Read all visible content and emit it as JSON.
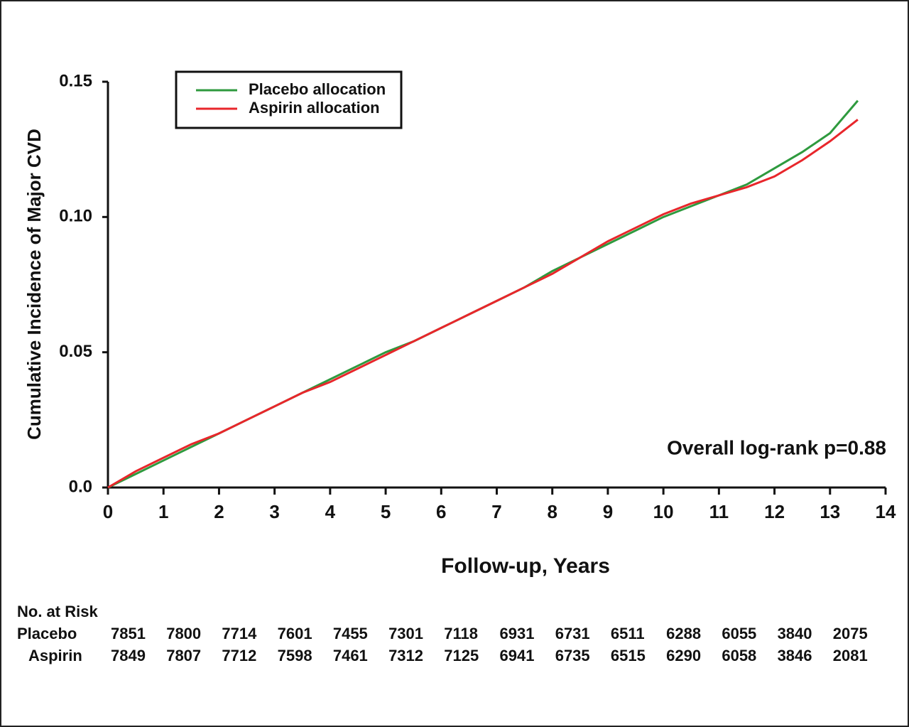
{
  "chart_data": {
    "type": "line",
    "y_label": "Cumulative Incidence of Major CVD",
    "x_label": "Follow-up, Years",
    "annotation": "Overall log-rank p=0.88",
    "x": [
      0,
      0.5,
      1,
      1.5,
      2,
      2.5,
      3,
      3.5,
      4,
      4.5,
      5,
      5.5,
      6,
      6.5,
      7,
      7.5,
      8,
      8.5,
      9,
      9.5,
      10,
      10.5,
      11,
      11.5,
      12,
      12.5,
      13,
      13.5
    ],
    "series": [
      {
        "name": "Placebo allocation",
        "color": "#2e9a3e",
        "values": [
          0,
          0.005,
          0.01,
          0.015,
          0.02,
          0.025,
          0.03,
          0.035,
          0.04,
          0.045,
          0.05,
          0.054,
          0.059,
          0.064,
          0.069,
          0.074,
          0.08,
          0.085,
          0.09,
          0.095,
          0.1,
          0.104,
          0.108,
          0.112,
          0.118,
          0.124,
          0.131,
          0.143
        ]
      },
      {
        "name": "Aspirin allocation",
        "color": "#e8262b",
        "values": [
          0,
          0.006,
          0.011,
          0.016,
          0.02,
          0.025,
          0.03,
          0.035,
          0.039,
          0.044,
          0.049,
          0.054,
          0.059,
          0.064,
          0.069,
          0.074,
          0.079,
          0.085,
          0.091,
          0.096,
          0.101,
          0.105,
          0.108,
          0.111,
          0.115,
          0.121,
          0.128,
          0.136
        ]
      }
    ],
    "xlim": [
      0,
      14
    ],
    "xticks": [
      0,
      1,
      2,
      3,
      4,
      5,
      6,
      7,
      8,
      9,
      10,
      11,
      12,
      13,
      14
    ],
    "ylim": [
      0,
      0.15
    ],
    "yticks": [
      {
        "value": 0,
        "label": "0.0"
      },
      {
        "value": 0.05,
        "label": "0.05"
      },
      {
        "value": 0.1,
        "label": "0.10"
      },
      {
        "value": 0.15,
        "label": "0.15"
      }
    ],
    "legend": "top-left",
    "risk_table": {
      "title": "No. at Risk",
      "rows": [
        {
          "label": "Placebo",
          "values": [
            7851,
            7800,
            7714,
            7601,
            7455,
            7301,
            7118,
            6931,
            6731,
            6511,
            6288,
            6055,
            3840,
            2075
          ]
        },
        {
          "label": "Aspirin",
          "values": [
            7849,
            7807,
            7712,
            7598,
            7461,
            7312,
            7125,
            6941,
            6735,
            6515,
            6290,
            6058,
            3846,
            2081
          ]
        }
      ]
    }
  }
}
